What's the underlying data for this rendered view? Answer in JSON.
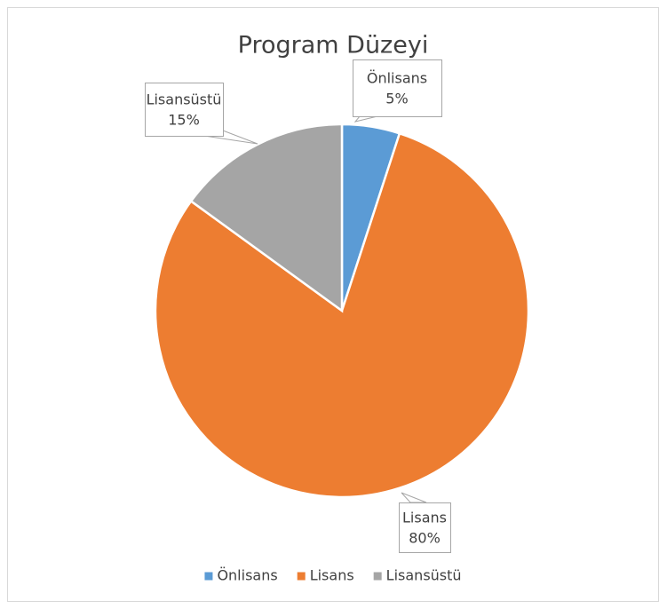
{
  "chart_data": {
    "type": "pie",
    "title": "Program Düzeyi",
    "categories": [
      "Önlisans",
      "Lisans",
      "Lisansüstü"
    ],
    "values": [
      5,
      80,
      15
    ],
    "value_labels": [
      "5%",
      "80%",
      "15%"
    ],
    "colors": [
      "#5b9bd5",
      "#ed7d31",
      "#a5a5a5"
    ],
    "legend": "bottom"
  }
}
